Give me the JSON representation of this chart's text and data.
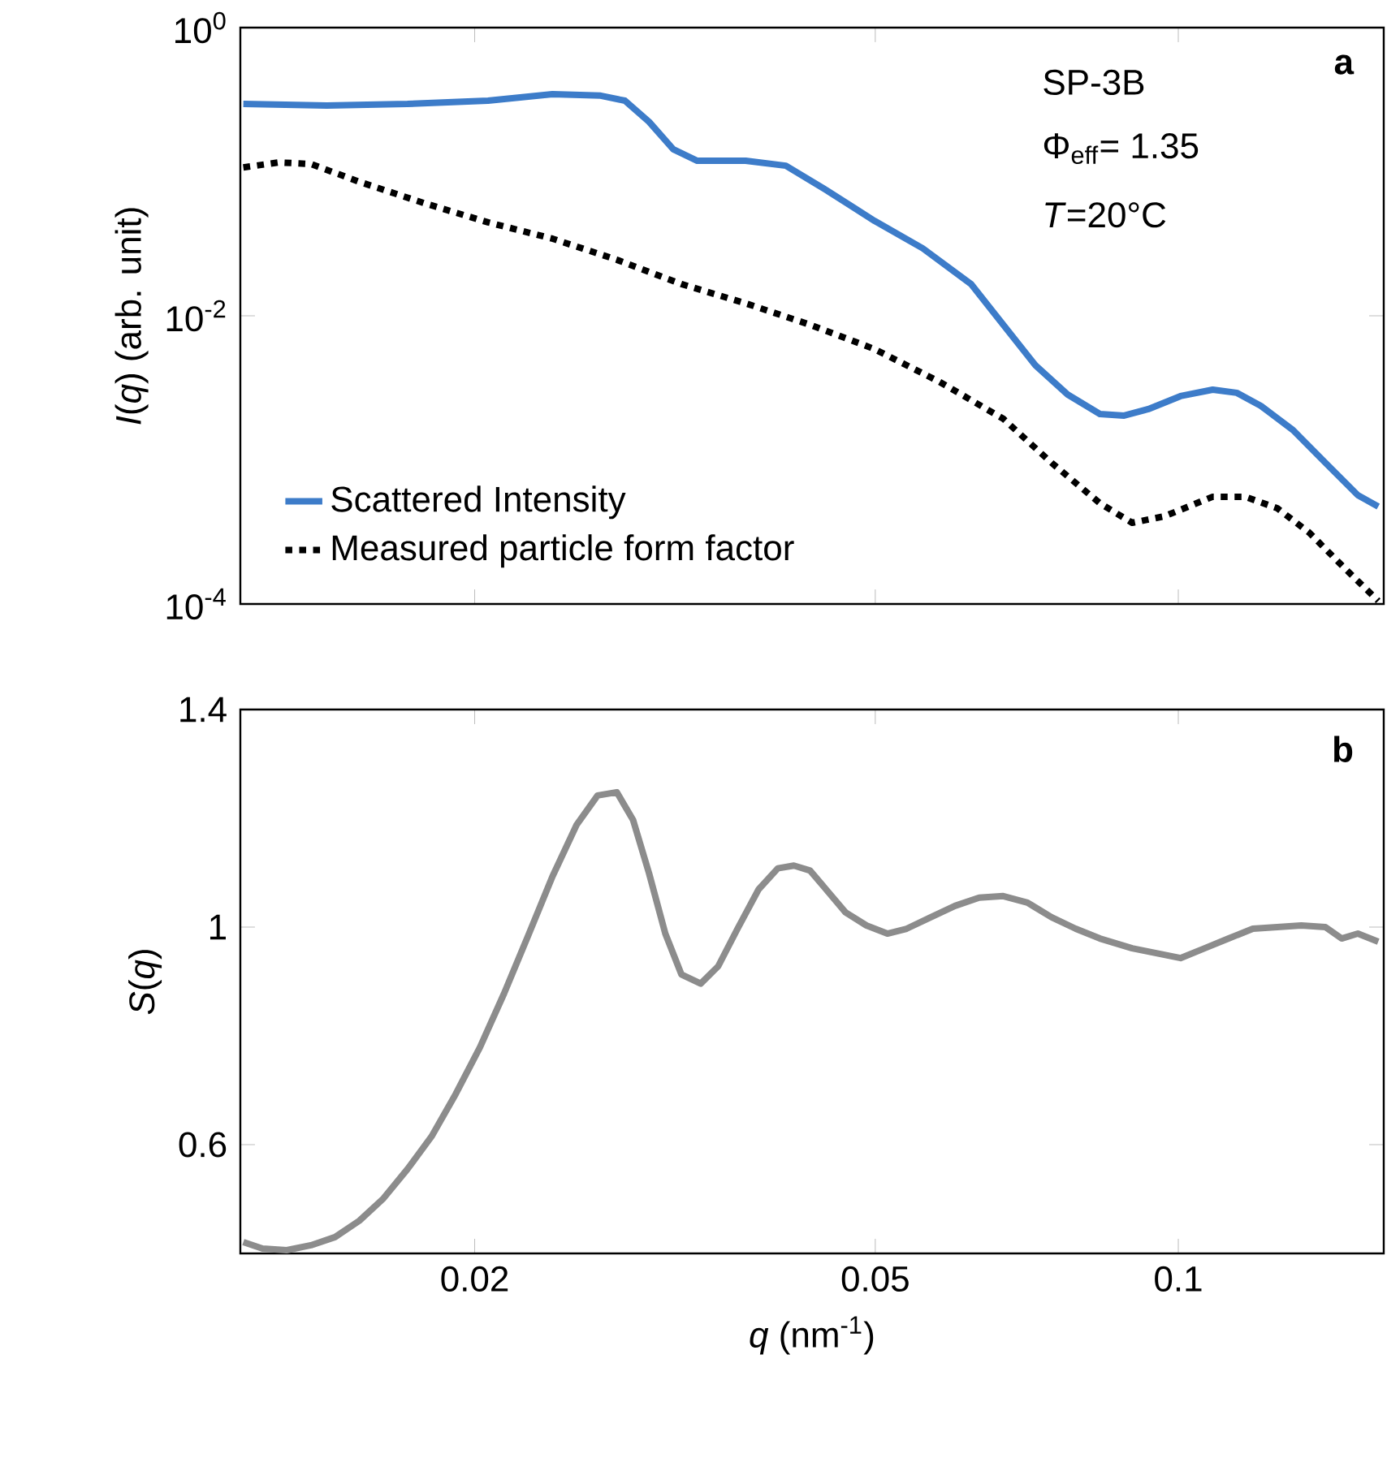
{
  "chart_data": [
    {
      "type": "line",
      "ylabel": "*I*(*q*) (arb. unit)",
      "log": "xy",
      "xlim": [
        0.0117,
        0.16
      ],
      "ylim": [
        0.0001,
        1
      ],
      "xticks": [
        {
          "value": 0.02,
          "label": null
        },
        {
          "value": 0.05,
          "label": null
        },
        {
          "value": 0.1,
          "label": null
        }
      ],
      "yticks": [
        {
          "value": 0.0001,
          "label": "10$^{-4}$"
        },
        {
          "value": 0.01,
          "label": "10$^{-2}$"
        },
        {
          "value": 1,
          "label": "10$^{0}$"
        }
      ],
      "tick_labels": "y",
      "grid": false,
      "legend": "bottom left",
      "annotations": [
        "a",
        "SP-3B",
        "Φ$_{eff}$= 1.35",
        "*T*=20°C"
      ],
      "series": [
        {
          "name": "Scattered Intensity",
          "color": "#3d7cc9",
          "line_style": "solid",
          "x": [
            0.01178,
            0.01426,
            0.01715,
            0.02062,
            0.02389,
            0.02668,
            0.0282,
            0.0298,
            0.0315,
            0.03328,
            0.03717,
            0.04075,
            0.04469,
            0.04991,
            0.05573,
            0.06226,
            0.06701,
            0.07213,
            0.07765,
            0.08359,
            0.08835,
            0.09337,
            0.1005,
            0.1082,
            0.1143,
            0.1208,
            0.13,
            0.14,
            0.1508,
            0.158
          ],
          "values": [
            0.295,
            0.288,
            0.295,
            0.311,
            0.345,
            0.337,
            0.311,
            0.222,
            0.143,
            0.119,
            0.119,
            0.11,
            0.0746,
            0.0456,
            0.0294,
            0.0166,
            0.00867,
            0.00453,
            0.00284,
            0.00208,
            0.00203,
            0.00225,
            0.00277,
            0.00307,
            0.00292,
            0.00237,
            0.00161,
            0.000955,
            0.000569,
            0.000474
          ]
        },
        {
          "name": "Measured particle form factor",
          "color": "#000000",
          "line_style": "dotted",
          "x": [
            0.01178,
            0.01277,
            0.01375,
            0.01536,
            0.01779,
            0.02062,
            0.02389,
            0.02768,
            0.03209,
            0.03717,
            0.04307,
            0.04991,
            0.05784,
            0.06701,
            0.07484,
            0.08359,
            0.08999,
            0.09687,
            0.1082,
            0.1165,
            0.1254,
            0.1349,
            0.1453,
            0.158
          ],
          "values": [
            0.107,
            0.116,
            0.113,
            0.0851,
            0.0607,
            0.0445,
            0.0343,
            0.0245,
            0.0166,
            0.0122,
            0.00867,
            0.00587,
            0.0035,
            0.00193,
            0.000955,
            0.0005,
            0.000366,
            0.000406,
            0.000555,
            0.000555,
            0.000462,
            0.000313,
            0.000186,
            0.000105
          ]
        }
      ]
    },
    {
      "type": "line",
      "xlabel": "*q* (nm$^{-1}$)",
      "ylabel": "*S*(*q*)",
      "log": "x",
      "xlim": [
        0.0117,
        0.16
      ],
      "ylim": [
        0.4,
        1.4
      ],
      "xticks": [
        0.02,
        0.05,
        0.1
      ],
      "yticks": [
        0.6,
        1,
        1.4
      ],
      "grid": false,
      "annotations": [
        "b"
      ],
      "series": [
        {
          "color": "#8c8c8c",
          "line_style": "solid",
          "x": [
            0.01178,
            0.01231,
            0.01301,
            0.01375,
            0.01453,
            0.01536,
            0.01623,
            0.01715,
            0.01812,
            0.01915,
            0.02024,
            0.02139,
            0.02261,
            0.02389,
            0.02525,
            0.02649,
            0.02768,
            0.02873,
            0.0298,
            0.03093,
            0.03209,
            0.03354,
            0.03491,
            0.03649,
            0.03828,
            0.04001,
            0.04151,
            0.04307,
            0.04469,
            0.04671,
            0.049,
            0.0514,
            0.05372,
            0.05677,
            0.06,
            0.06341,
            0.06701,
            0.07082,
            0.07484,
            0.07909,
            0.08359,
            0.08999,
            0.0951,
            0.1005,
            0.1062,
            0.1122,
            0.1186,
            0.1254,
            0.1325,
            0.14,
            0.1453,
            0.1508,
            0.158
          ],
          "values": [
            0.421,
            0.409,
            0.406,
            0.415,
            0.43,
            0.46,
            0.501,
            0.555,
            0.615,
            0.693,
            0.779,
            0.878,
            0.985,
            1.093,
            1.188,
            1.242,
            1.248,
            1.197,
            1.099,
            0.988,
            0.913,
            0.896,
            0.928,
            0.997,
            1.069,
            1.108,
            1.113,
            1.104,
            1.069,
            1.027,
            1.003,
            0.988,
            0.997,
            1.018,
            1.039,
            1.054,
            1.057,
            1.045,
            1.018,
            0.997,
            0.979,
            0.961,
            0.952,
            0.943,
            0.961,
            0.979,
            0.997,
            1.0,
            1.003,
            1.0,
            0.979,
            0.988,
            0.973
          ]
        }
      ]
    }
  ]
}
